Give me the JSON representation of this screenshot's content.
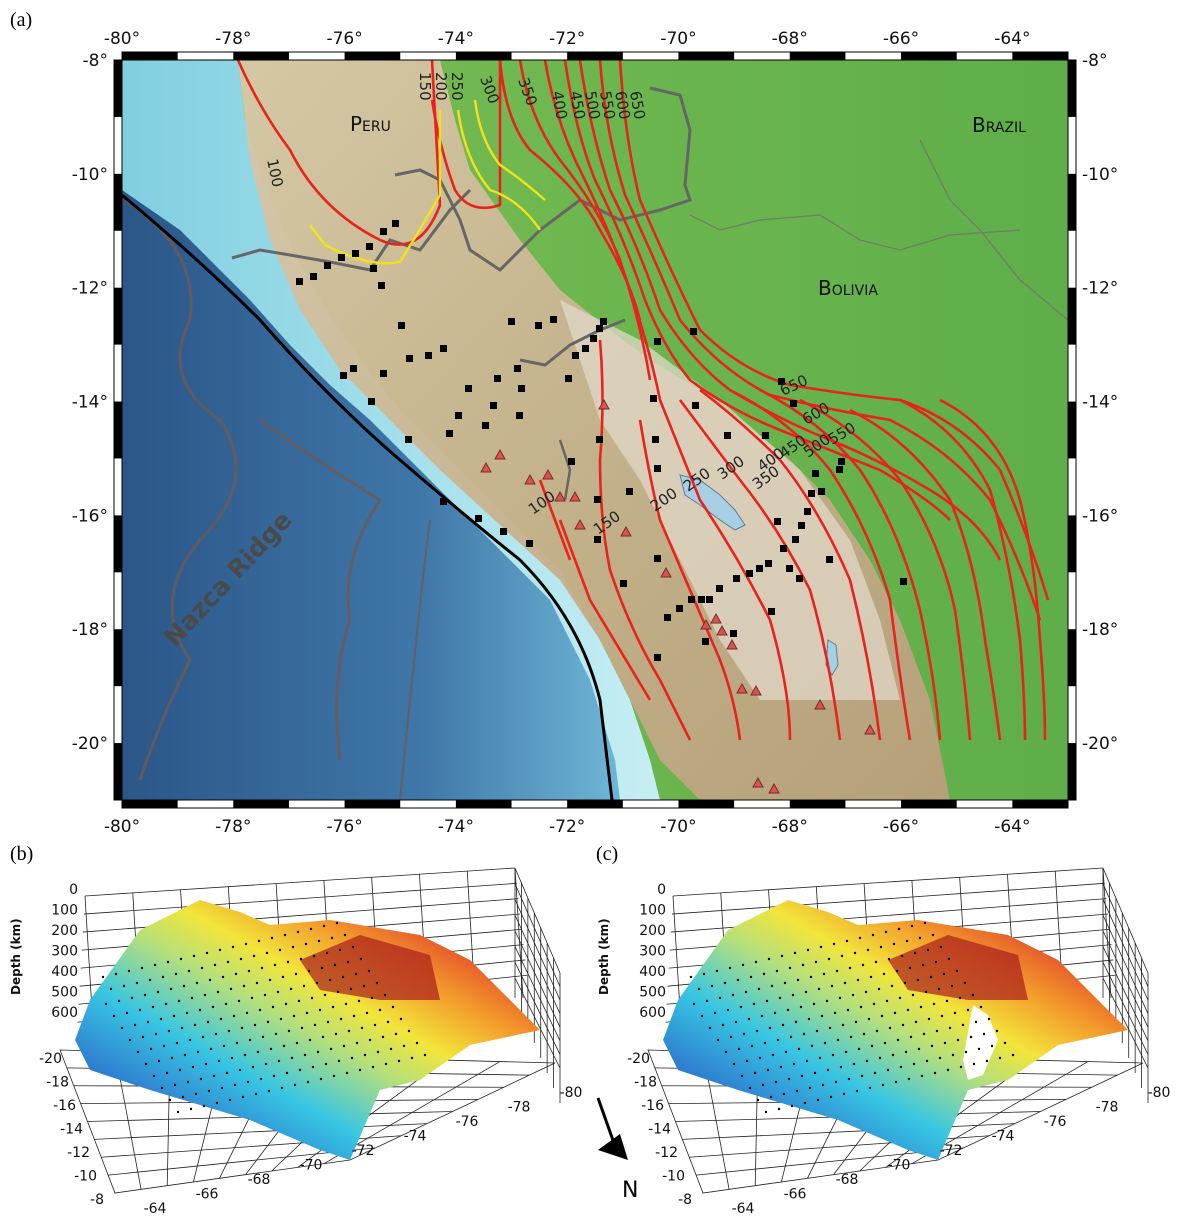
{
  "panel_labels": {
    "a": "(a)",
    "b": "(b)",
    "c": "(c)"
  },
  "map": {
    "lon_ticks": [
      "-80°",
      "-78°",
      "-76°",
      "-74°",
      "-72°",
      "-70°",
      "-68°",
      "-66°",
      "-64°"
    ],
    "lat_ticks": [
      "-8°",
      "-10°",
      "-12°",
      "-14°",
      "-16°",
      "-18°",
      "-20°"
    ],
    "lon_range": [
      -80,
      -63
    ],
    "lat_range": [
      -21,
      -8
    ],
    "countries": {
      "peru": "Peru",
      "brazil": "Brazil",
      "bolivia": "Bolivia"
    },
    "feature_label": "Nazca Ridge",
    "contour_labels_north": [
      "150",
      "200",
      "250",
      "300",
      "350",
      "400",
      "450",
      "500",
      "550",
      "600",
      "650"
    ],
    "contour_label_100": "100",
    "contour_labels_south": [
      "100",
      "150",
      "200",
      "250",
      "300",
      "350",
      "400",
      "450",
      "500",
      "550",
      "600",
      "650"
    ],
    "colors": {
      "contour": "#e8231d",
      "alt_contour": "#f2e21a",
      "trench": "#111111",
      "ocean_deep": "#2c5a8c",
      "ocean_shallow": "#8fd6e6",
      "lowland": "#67b552",
      "highland": "#c9b79b",
      "station": "#000000",
      "volcano": "#d9534f"
    }
  },
  "plot3d": {
    "depth_axis_label": "Depth (km)",
    "depth_ticks": [
      "0",
      "100",
      "200",
      "300",
      "400",
      "500",
      "600"
    ],
    "lat_ticks": [
      "-20",
      "-18",
      "-16",
      "-14",
      "-12",
      "-10",
      "-8"
    ],
    "lon_ticks": [
      "-64",
      "-66",
      "-68",
      "-70",
      "-72",
      "-74",
      "-76",
      "-78",
      "-80"
    ],
    "north_label": "N"
  }
}
